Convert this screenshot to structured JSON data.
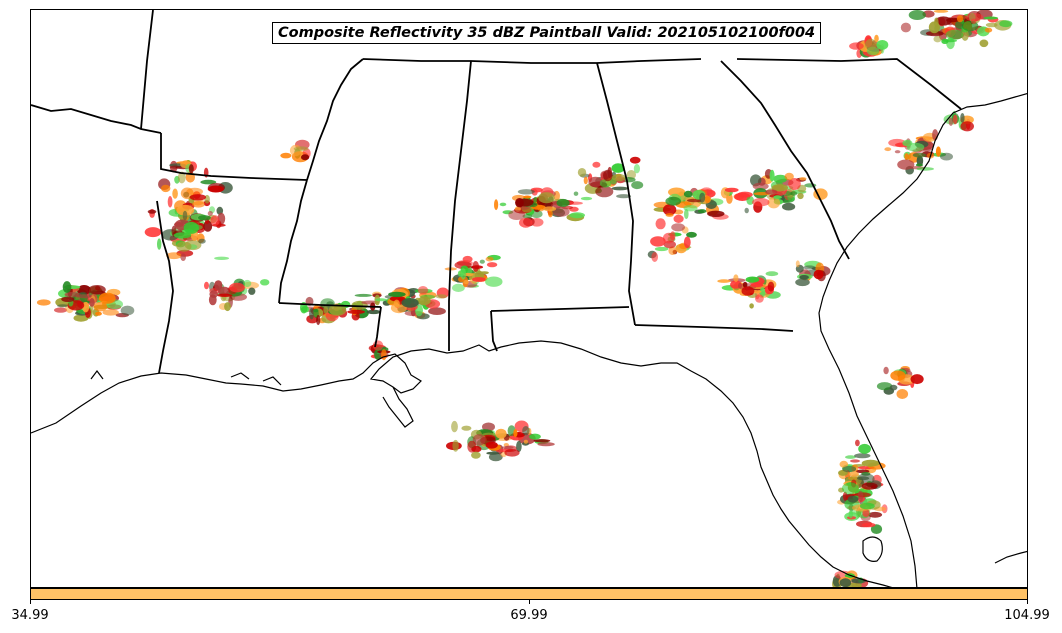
{
  "title": "Composite Reflectivity 35 dBZ Paintball Valid: 202105102100f004",
  "colorbar": {
    "color": "#ffc266",
    "ticks": [
      "34.99",
      "69.99",
      "104.99"
    ]
  },
  "member_colors": [
    "#ff3333",
    "#cc0000",
    "#ff7f00",
    "#ffa333",
    "#33cc33",
    "#55dd55",
    "#228b22",
    "#a0a030",
    "#8b0000",
    "#3d5a3d",
    "#b23a3a"
  ]
}
